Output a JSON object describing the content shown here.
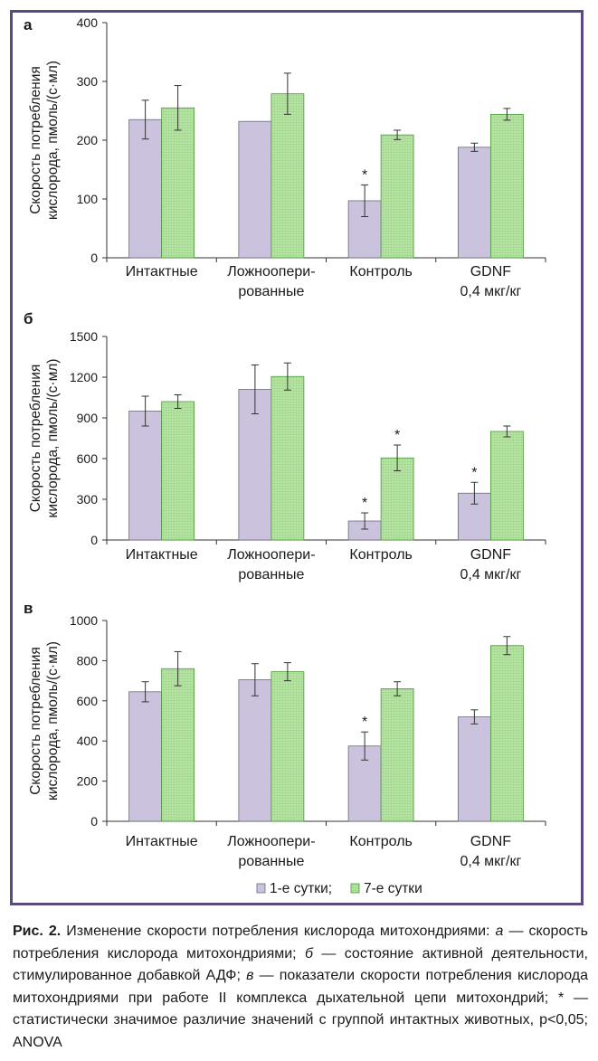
{
  "colors": {
    "frame": "#5b4a7f",
    "series1": "#cbc3dd",
    "series1_stroke": "#6b6a7a",
    "series2": "#b5e0a0",
    "series2_stroke": "#4a9a3a"
  },
  "legend": {
    "items": [
      "1-е сутки",
      "7-е сутки"
    ],
    "separator": ";"
  },
  "chart_data": [
    {
      "panel_label": "а",
      "type": "bar",
      "ylabel": [
        "Скорость потребления",
        "кислорода, пмоль/(с·мл)"
      ],
      "ylim": [
        0,
        400
      ],
      "yticks": [
        0,
        100,
        200,
        300,
        400
      ],
      "categories": [
        [
          "Интактные"
        ],
        [
          "Ложноопери-",
          "рованные"
        ],
        [
          "Контроль"
        ],
        [
          "GDNF",
          "0,4 мкг/кг"
        ]
      ],
      "series": [
        {
          "name": "1-е сутки",
          "values": [
            235,
            232,
            97,
            188
          ],
          "errors": [
            33,
            0,
            27,
            7
          ],
          "stars": [
            false,
            false,
            true,
            false
          ]
        },
        {
          "name": "7-е сутки",
          "values": [
            255,
            279,
            209,
            244
          ],
          "errors": [
            38,
            35,
            8,
            10
          ],
          "stars": [
            false,
            false,
            false,
            false
          ]
        }
      ]
    },
    {
      "panel_label": "б",
      "type": "bar",
      "ylabel": [
        "Скорость потребления",
        "кислорода, пмоль/(с·мл)"
      ],
      "ylim": [
        0,
        1500
      ],
      "yticks": [
        0,
        300,
        600,
        900,
        1200,
        1500
      ],
      "categories": [
        [
          "Интактные"
        ],
        [
          "Ложноопери-",
          "рованные"
        ],
        [
          "Контроль"
        ],
        [
          "GDNF",
          "0,4 мкг/кг"
        ]
      ],
      "series": [
        {
          "name": "1-е сутки",
          "values": [
            950,
            1110,
            140,
            345
          ],
          "errors": [
            110,
            180,
            60,
            80
          ],
          "stars": [
            false,
            false,
            true,
            true
          ]
        },
        {
          "name": "7-е сутки",
          "values": [
            1020,
            1205,
            605,
            800
          ],
          "errors": [
            50,
            100,
            95,
            40
          ],
          "stars": [
            false,
            false,
            true,
            false
          ]
        }
      ]
    },
    {
      "panel_label": "в",
      "type": "bar",
      "ylabel": [
        "Скорость потребления",
        "кислорода, пмоль/(с·мл)"
      ],
      "ylim": [
        0,
        1000
      ],
      "yticks": [
        0,
        200,
        400,
        600,
        800,
        1000
      ],
      "categories": [
        [
          "Интактные"
        ],
        [
          "Ложноопери-",
          "рованные"
        ],
        [
          "Контроль"
        ],
        [
          "GDNF",
          "0,4 мкг/кг"
        ]
      ],
      "series": [
        {
          "name": "1-е сутки",
          "values": [
            645,
            705,
            375,
            520
          ],
          "errors": [
            50,
            80,
            70,
            35
          ],
          "stars": [
            false,
            false,
            true,
            false
          ]
        },
        {
          "name": "7-е сутки",
          "values": [
            760,
            745,
            660,
            875
          ],
          "errors": [
            85,
            45,
            35,
            45
          ],
          "stars": [
            false,
            false,
            false,
            false
          ]
        }
      ]
    }
  ],
  "caption": {
    "label": "Рис. 2.",
    "parts": [
      {
        "t": " Изменение скорости потребления кислорода митохондриями: ",
        "s": ""
      },
      {
        "t": "а",
        "s": "i"
      },
      {
        "t": " — скорость потребления кислорода митохондриями; ",
        "s": ""
      },
      {
        "t": "б",
        "s": "i"
      },
      {
        "t": " — состояние активной деятельности, стимулированное добавкой АДФ; ",
        "s": ""
      },
      {
        "t": "в",
        "s": "i"
      },
      {
        "t": " — показате­ли скорости потребления кислорода митохондриями при работе II комп­лекса дыхательной цепи митохондрий; * — статистически значимое раз­личие значений с группой интактных животных, p<0,05; ANOVA",
        "s": ""
      }
    ]
  }
}
